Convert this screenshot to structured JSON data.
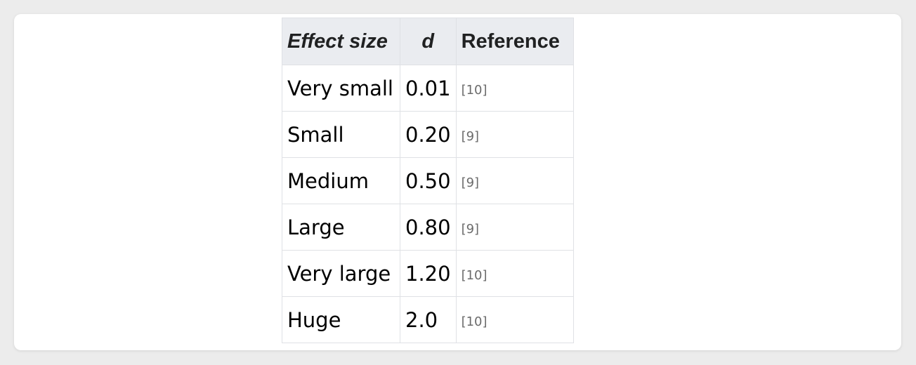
{
  "table": {
    "headers": {
      "effect_size": "Effect size",
      "d": "d",
      "reference": "Reference"
    },
    "rows": [
      {
        "label": "Very small",
        "d": "0.01",
        "ref": "[10]"
      },
      {
        "label": "Small",
        "d": "0.20",
        "ref": "[9]"
      },
      {
        "label": "Medium",
        "d": "0.50",
        "ref": "[9]"
      },
      {
        "label": "Large",
        "d": "0.80",
        "ref": "[9]"
      },
      {
        "label": "Very large",
        "d": "1.20",
        "ref": "[10]"
      },
      {
        "label": "Huge",
        "d": "2.0",
        "ref": "[10]"
      }
    ]
  }
}
